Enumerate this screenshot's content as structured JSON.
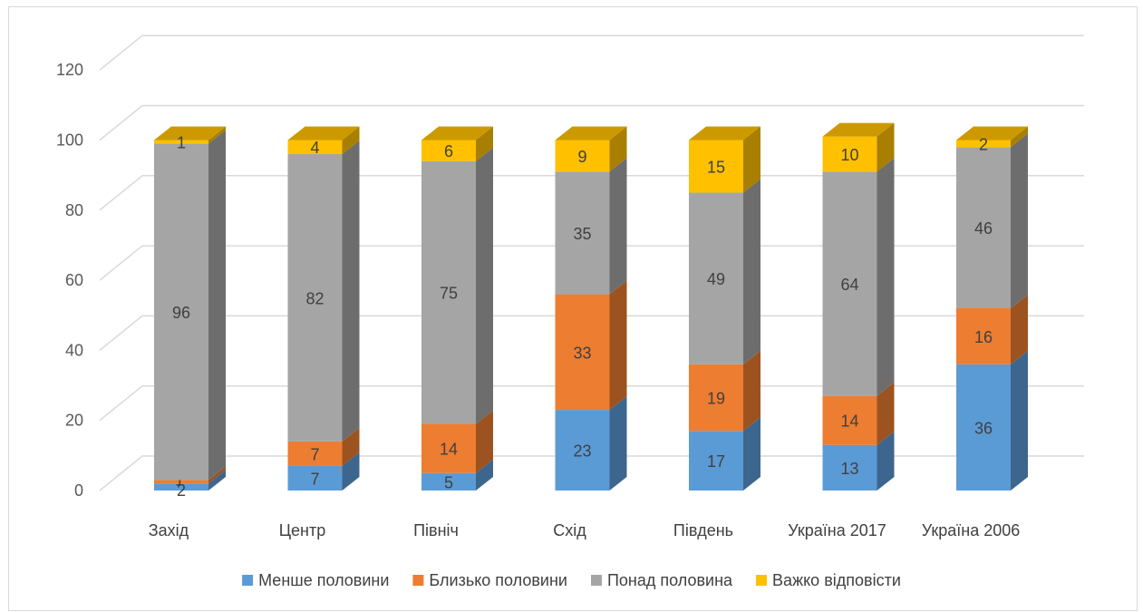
{
  "chart_data": {
    "type": "bar",
    "stacked": true,
    "style": "3d-column",
    "title": "",
    "xlabel": "",
    "ylabel": "",
    "ylim": [
      0,
      120
    ],
    "yticks": [
      "0",
      "20",
      "40",
      "60",
      "80",
      "100",
      "120"
    ],
    "grid": true,
    "legend_position": "bottom",
    "categories": [
      "Захід",
      "Центр",
      "Північ",
      "Схід",
      "Південь",
      "Україна 2017",
      "Україна 2006"
    ],
    "series": [
      {
        "name": "Менше половини",
        "color": "#5b9bd5",
        "values": [
          2,
          7,
          5,
          23,
          17,
          13,
          36
        ]
      },
      {
        "name": "Близько половини",
        "color": "#ed7d31",
        "values": [
          1,
          7,
          14,
          33,
          19,
          14,
          16
        ]
      },
      {
        "name": "Понад половина",
        "color": "#a5a5a5",
        "values": [
          96,
          82,
          75,
          35,
          49,
          64,
          46
        ]
      },
      {
        "name": "Важко відповісти",
        "color": "#ffc000",
        "values": [
          1,
          4,
          6,
          9,
          15,
          10,
          2
        ]
      }
    ]
  }
}
